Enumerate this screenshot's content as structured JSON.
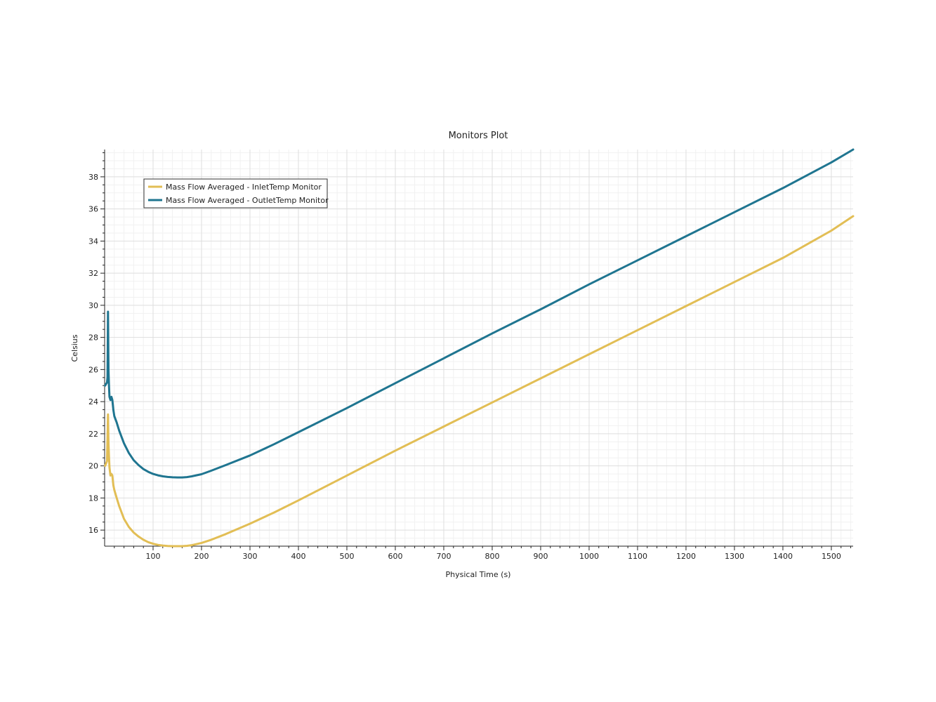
{
  "chart_data": {
    "type": "line",
    "title": "Monitors Plot",
    "xlabel": "Physical Time (s)",
    "ylabel": "Celsius",
    "xlim": [
      0,
      1545
    ],
    "ylim": [
      15.0,
      39.7
    ],
    "x_ticks": [
      100,
      200,
      300,
      400,
      500,
      600,
      700,
      800,
      900,
      1000,
      1100,
      1200,
      1300,
      1400,
      1500
    ],
    "y_ticks": [
      16,
      18,
      20,
      22,
      24,
      26,
      28,
      30,
      32,
      34,
      36,
      38
    ],
    "grid": true,
    "legend_position": "top-left",
    "series": [
      {
        "name": "Mass Flow Averaged - InletTemp Monitor",
        "color": "#e2be55",
        "x": [
          1,
          5,
          7,
          8,
          9,
          10,
          12,
          14,
          16,
          18,
          20,
          25,
          30,
          40,
          50,
          60,
          70,
          80,
          90,
          100,
          110,
          120,
          130,
          140,
          150,
          160,
          170,
          180,
          200,
          220,
          250,
          300,
          350,
          400,
          500,
          600,
          700,
          800,
          900,
          1000,
          1100,
          1200,
          1300,
          1400,
          1500,
          1545
        ],
        "values": [
          20.0,
          20.3,
          23.2,
          21.4,
          20.6,
          19.9,
          19.4,
          19.5,
          19.4,
          18.8,
          18.5,
          18.0,
          17.5,
          16.7,
          16.2,
          15.85,
          15.6,
          15.4,
          15.25,
          15.15,
          15.08,
          15.04,
          15.01,
          15.0,
          15.0,
          15.0,
          15.02,
          15.06,
          15.2,
          15.4,
          15.75,
          16.4,
          17.1,
          17.85,
          19.4,
          20.95,
          22.45,
          23.95,
          25.45,
          26.95,
          28.45,
          29.95,
          31.45,
          32.95,
          34.65,
          35.55
        ]
      },
      {
        "name": "Mass Flow Averaged - OutletTemp Monitor",
        "color": "#1f7590",
        "x": [
          1,
          5,
          6,
          7,
          8,
          9,
          10,
          12,
          14,
          16,
          18,
          20,
          25,
          30,
          40,
          50,
          60,
          70,
          80,
          90,
          100,
          110,
          120,
          130,
          140,
          150,
          160,
          170,
          180,
          200,
          220,
          250,
          300,
          350,
          400,
          500,
          600,
          700,
          800,
          900,
          1000,
          1100,
          1200,
          1300,
          1400,
          1500,
          1545
        ],
        "values": [
          25.0,
          25.2,
          25.5,
          29.6,
          26.0,
          25.0,
          24.3,
          24.1,
          24.3,
          24.1,
          23.5,
          23.1,
          22.7,
          22.2,
          21.4,
          20.8,
          20.35,
          20.05,
          19.8,
          19.63,
          19.5,
          19.41,
          19.35,
          19.31,
          19.29,
          19.28,
          19.28,
          19.3,
          19.35,
          19.48,
          19.7,
          20.05,
          20.65,
          21.35,
          22.1,
          23.6,
          25.15,
          26.7,
          28.25,
          29.75,
          31.3,
          32.8,
          34.3,
          35.8,
          37.3,
          38.9,
          39.7
        ]
      }
    ]
  }
}
